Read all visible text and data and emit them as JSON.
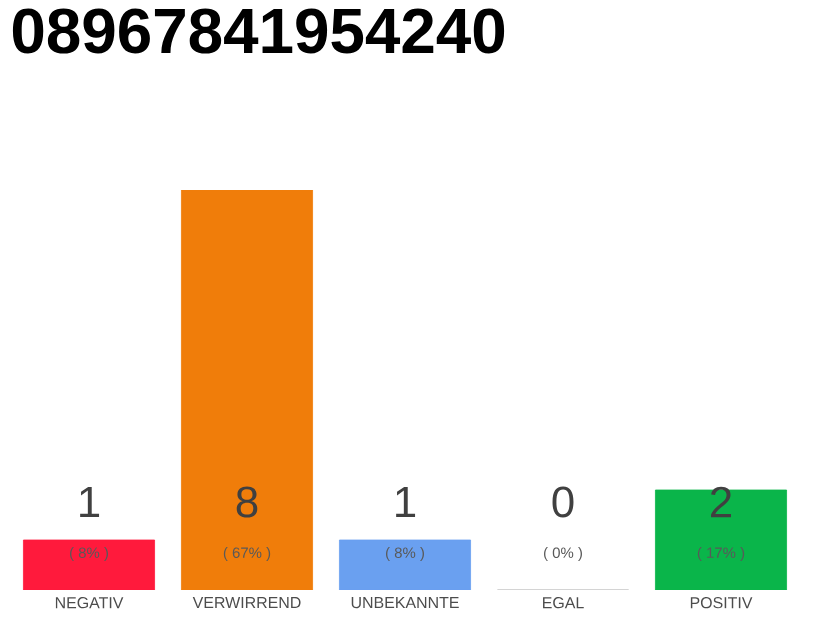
{
  "chart_data": {
    "type": "bar",
    "title": "08967841954240",
    "categories": [
      "NEGATIV",
      "VERWIRREND",
      "UNBEKANNTE",
      "EGAL",
      "POSITIV"
    ],
    "values": [
      1,
      8,
      1,
      0,
      2
    ],
    "colors": [
      "#ff1a3c",
      "#f07d0a",
      "#6aa0f0",
      "#bbbbbb",
      "#0ab54a"
    ],
    "value_labels": [
      "1",
      "8",
      "1",
      "0",
      "2"
    ],
    "annotations": [
      "( 8% )",
      "( 67% )",
      "( 8% )",
      "( 0% )",
      "( 17% )"
    ],
    "tick_labels": "x"
  }
}
